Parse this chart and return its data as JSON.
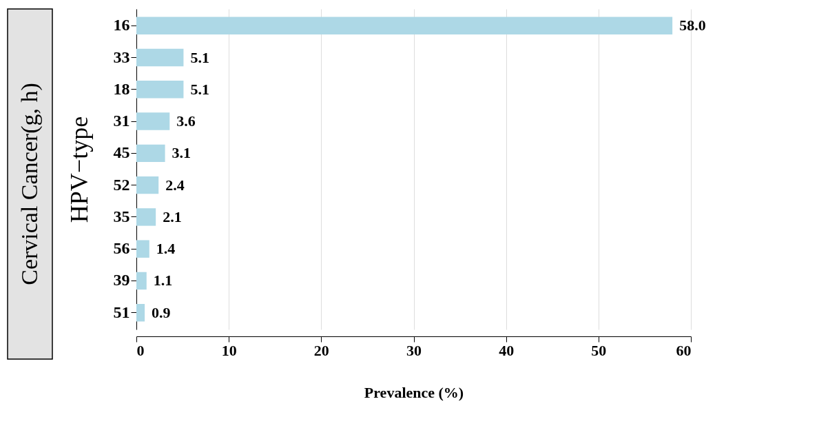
{
  "chart_data": {
    "type": "bar",
    "orientation": "horizontal",
    "title": "Cervical Cancer(g, h)",
    "xlabel": "Prevalence (%)",
    "ylabel": "HPV−type",
    "categories": [
      "16",
      "33",
      "18",
      "31",
      "45",
      "52",
      "35",
      "56",
      "39",
      "51"
    ],
    "values": [
      58.0,
      5.1,
      5.1,
      3.6,
      3.1,
      2.4,
      2.1,
      1.4,
      1.1,
      0.9
    ],
    "value_labels": [
      "58.0",
      "5.1",
      "5.1",
      "3.6",
      "3.1",
      "2.4",
      "2.1",
      "1.4",
      "1.1",
      "0.9"
    ],
    "color": "#add8e6",
    "xlim": [
      0,
      60
    ],
    "xticks": [
      0,
      10,
      20,
      30,
      40,
      50,
      60
    ],
    "grid": "x"
  }
}
